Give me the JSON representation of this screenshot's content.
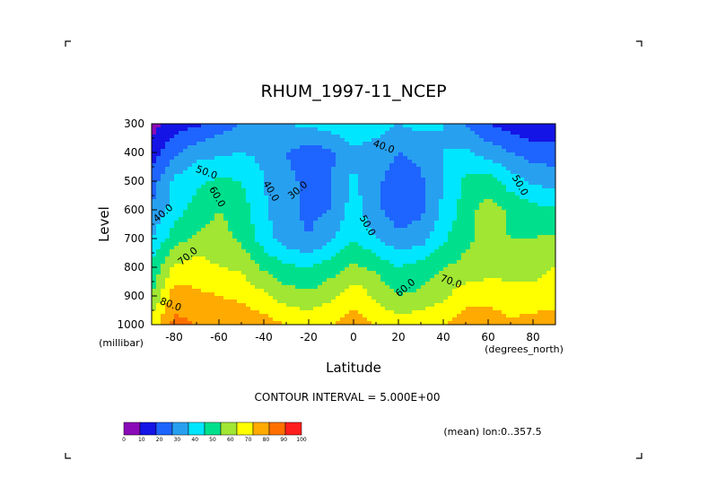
{
  "chart_data": {
    "type": "heatmap",
    "title": "RHUM_1997-11_NCEP",
    "xlabel": "Latitude",
    "ylabel": "Level",
    "y_unit": "(millibar)",
    "x_unit": "(degrees_north)",
    "xlim": [
      -90,
      90
    ],
    "ylim": [
      1000,
      300
    ],
    "x_ticks": [
      "-80",
      "-60",
      "-40",
      "-20",
      "0",
      "20",
      "40",
      "60",
      "80"
    ],
    "x_tick_values": [
      -80,
      -60,
      -40,
      -20,
      0,
      20,
      40,
      60,
      80
    ],
    "y_ticks": [
      "300",
      "400",
      "500",
      "600",
      "700",
      "800",
      "900",
      "1000"
    ],
    "y_tick_values": [
      300,
      400,
      500,
      600,
      700,
      800,
      900,
      1000
    ],
    "contour_interval_text": "CONTOUR INTERVAL = 5.000E+00",
    "footnote": "(mean) lon:0..357.5",
    "contour_labels": [
      "40.0",
      "50.0",
      "60.0",
      "70.0",
      "80.0",
      "40.0",
      "30.0",
      "40.0",
      "50.0",
      "60.0",
      "70.0",
      "50.0"
    ],
    "colorbar": {
      "ticks": [
        "0",
        "10",
        "20",
        "30",
        "40",
        "50",
        "60",
        "70",
        "80",
        "90",
        "100"
      ],
      "colors": [
        "#8a0ab8",
        "#1414e6",
        "#1e64ff",
        "#28a0f0",
        "#00e6ff",
        "#00e08c",
        "#a0e632",
        "#ffff00",
        "#ffaa00",
        "#ff7000",
        "#ff1e1e"
      ]
    },
    "levels": [
      300,
      400,
      500,
      600,
      700,
      800,
      900,
      1000
    ],
    "latitudes": [
      -90,
      -80,
      -70,
      -60,
      -50,
      -40,
      -30,
      -20,
      -10,
      0,
      10,
      20,
      30,
      40,
      50,
      60,
      70,
      80,
      90
    ],
    "values": [
      [
        5,
        15,
        18,
        25,
        30,
        33,
        40,
        42,
        45,
        48,
        45,
        40,
        43,
        40,
        30,
        20,
        15,
        12,
        10
      ],
      [
        15,
        28,
        36,
        38,
        40,
        38,
        30,
        25,
        28,
        38,
        35,
        30,
        33,
        40,
        42,
        36,
        30,
        25,
        25
      ],
      [
        25,
        42,
        48,
        52,
        50,
        40,
        32,
        28,
        30,
        42,
        32,
        25,
        28,
        40,
        52,
        55,
        45,
        38,
        35
      ],
      [
        30,
        45,
        54,
        60,
        55,
        42,
        32,
        28,
        30,
        45,
        32,
        25,
        28,
        42,
        55,
        65,
        58,
        53,
        52
      ],
      [
        40,
        55,
        62,
        64,
        58,
        45,
        35,
        30,
        38,
        50,
        40,
        32,
        35,
        48,
        58,
        62,
        60,
        60,
        62
      ],
      [
        52,
        72,
        75,
        70,
        68,
        58,
        52,
        50,
        55,
        62,
        58,
        50,
        55,
        60,
        63,
        67,
        67,
        68,
        70
      ],
      [
        60,
        85,
        82,
        80,
        78,
        72,
        65,
        62,
        68,
        77,
        68,
        60,
        62,
        68,
        76,
        75,
        73,
        72,
        74
      ],
      [
        75,
        93,
        90,
        88,
        86,
        85,
        80,
        78,
        80,
        85,
        80,
        75,
        78,
        80,
        86,
        88,
        82,
        85,
        88
      ]
    ]
  }
}
